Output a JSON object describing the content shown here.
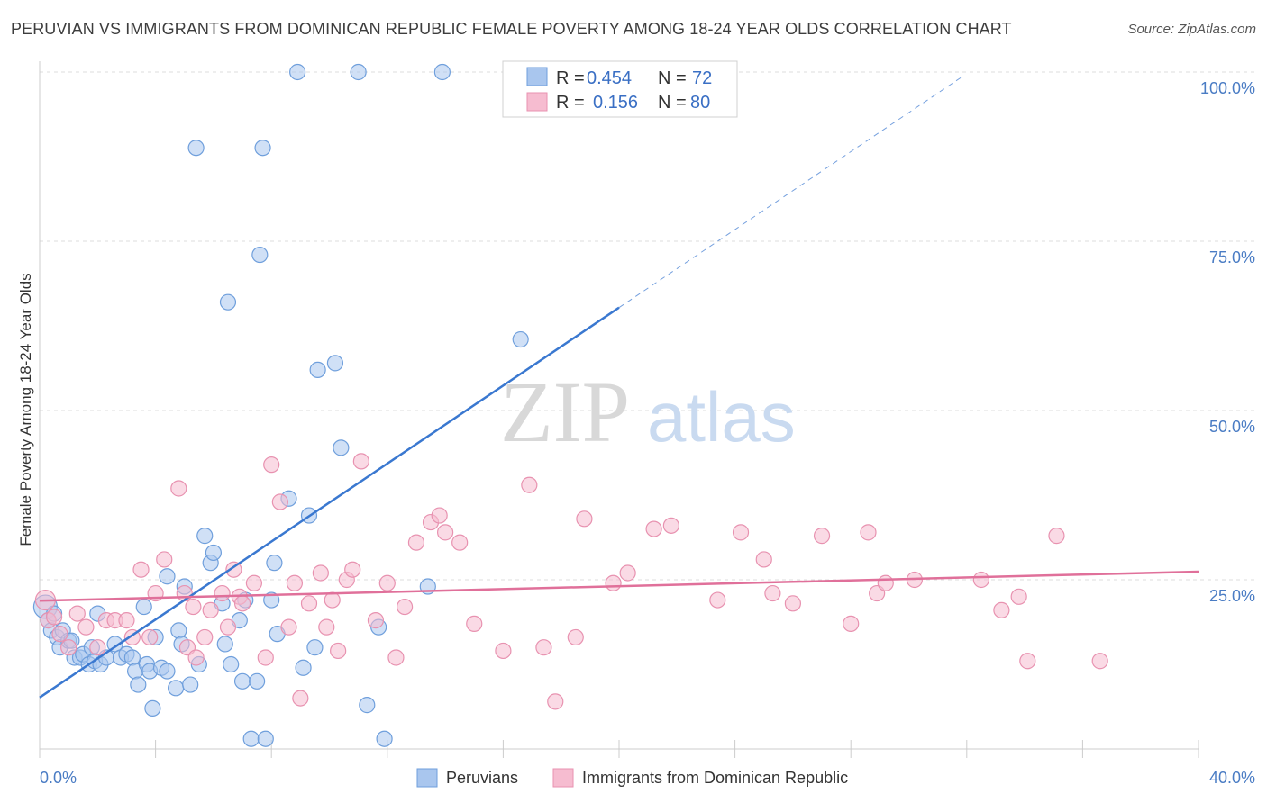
{
  "header": {
    "title": "PERUVIAN VS IMMIGRANTS FROM DOMINICAN REPUBLIC FEMALE POVERTY AMONG 18-24 YEAR OLDS CORRELATION CHART",
    "source": "Source: ZipAtlas.com"
  },
  "watermark": {
    "zip": "ZIP",
    "atlas": "atlas"
  },
  "colors": {
    "blue_fill": "#a9c6ee",
    "blue_stroke": "#6f9fdc",
    "blue_line": "#3a78d0",
    "pink_fill": "#f6bcd0",
    "pink_stroke": "#e892b0",
    "pink_line": "#e0709a",
    "tick_color": "#4a7cc4",
    "grid": "#dddddd"
  },
  "chart_data": {
    "type": "scatter",
    "ylabel": "Female Poverty Among 18-24 Year Olds",
    "xlim": [
      0,
      40
    ],
    "ylim": [
      0,
      100
    ],
    "x_ticks": [
      "0.0%",
      "40.0%"
    ],
    "y_ticks": [
      {
        "value": 25,
        "label": "25.0%"
      },
      {
        "value": 50,
        "label": "50.0%"
      },
      {
        "value": 75,
        "label": "75.0%"
      },
      {
        "value": 100,
        "label": "100.0%"
      }
    ],
    "legend_stats": [
      {
        "r_label": "R =",
        "r_value": "0.454",
        "n_label": "N =",
        "n_value": "72"
      },
      {
        "r_label": "R =",
        "r_value": "0.156",
        "n_label": "N =",
        "n_value": "80"
      }
    ],
    "series": [
      {
        "name": "Peruvians",
        "trend": {
          "x0": 0,
          "y0": 7.6,
          "x1": 20,
          "y1": 65.2,
          "dash_to_x": 31.8
        },
        "points": [
          [
            0.2,
            21
          ],
          [
            0.3,
            19
          ],
          [
            0.4,
            17.5
          ],
          [
            0.5,
            20
          ],
          [
            0.6,
            16.5
          ],
          [
            0.7,
            15
          ],
          [
            0.8,
            17.5
          ],
          [
            1.0,
            16
          ],
          [
            1.2,
            13.5
          ],
          [
            1.4,
            13.5
          ],
          [
            1.5,
            14
          ],
          [
            1.7,
            12.5
          ],
          [
            1.8,
            15
          ],
          [
            1.9,
            13
          ],
          [
            2.1,
            12.5
          ],
          [
            2.3,
            13.5
          ],
          [
            2.6,
            15.5
          ],
          [
            2.8,
            13.5
          ],
          [
            3.0,
            14
          ],
          [
            3.2,
            13.5
          ],
          [
            3.3,
            11.5
          ],
          [
            3.4,
            9.5
          ],
          [
            3.7,
            12.5
          ],
          [
            3.8,
            11.5
          ],
          [
            3.9,
            6
          ],
          [
            4.0,
            16.5
          ],
          [
            4.2,
            12
          ],
          [
            4.4,
            11.5
          ],
          [
            4.4,
            25.5
          ],
          [
            4.7,
            9
          ],
          [
            4.8,
            17.5
          ],
          [
            4.9,
            15.5
          ],
          [
            5.0,
            24
          ],
          [
            5.2,
            9.5
          ],
          [
            5.5,
            12.5
          ],
          [
            5.7,
            31.5
          ],
          [
            5.9,
            27.5
          ],
          [
            6.0,
            29
          ],
          [
            6.3,
            21.5
          ],
          [
            6.4,
            15.5
          ],
          [
            6.6,
            12.5
          ],
          [
            6.9,
            19
          ],
          [
            7.0,
            10
          ],
          [
            7.1,
            22
          ],
          [
            7.3,
            1.5
          ],
          [
            7.5,
            10
          ],
          [
            7.6,
            73
          ],
          [
            7.7,
            88.8
          ],
          [
            7.8,
            1.5
          ],
          [
            8.0,
            22
          ],
          [
            8.1,
            27.5
          ],
          [
            8.2,
            17
          ],
          [
            8.6,
            37
          ],
          [
            8.9,
            100
          ],
          [
            9.1,
            12
          ],
          [
            9.3,
            34.5
          ],
          [
            9.5,
            15
          ],
          [
            9.6,
            56
          ],
          [
            10.2,
            57
          ],
          [
            10.4,
            44.5
          ],
          [
            11.0,
            100
          ],
          [
            11.3,
            6.5
          ],
          [
            11.7,
            18
          ],
          [
            11.9,
            1.5
          ],
          [
            13.4,
            24
          ],
          [
            13.9,
            100
          ],
          [
            16.6,
            60.5
          ],
          [
            5.4,
            88.8
          ],
          [
            6.5,
            66
          ],
          [
            1.1,
            16
          ],
          [
            3.6,
            21
          ],
          [
            2.0,
            20
          ]
        ]
      },
      {
        "name": "Immigrants from Dominican Republic",
        "trend": {
          "x0": 0,
          "y0": 21.9,
          "x1": 40,
          "y1": 26.2
        },
        "points": [
          [
            0.2,
            22
          ],
          [
            0.3,
            19
          ],
          [
            0.5,
            19.5
          ],
          [
            0.7,
            17
          ],
          [
            1.0,
            15
          ],
          [
            1.3,
            20
          ],
          [
            1.6,
            18
          ],
          [
            2.0,
            15
          ],
          [
            2.3,
            19
          ],
          [
            2.6,
            19
          ],
          [
            3.0,
            19
          ],
          [
            3.2,
            16.5
          ],
          [
            3.5,
            26.5
          ],
          [
            3.8,
            16.5
          ],
          [
            4.0,
            23
          ],
          [
            4.3,
            28
          ],
          [
            4.8,
            38.5
          ],
          [
            5.0,
            23
          ],
          [
            5.1,
            15
          ],
          [
            5.3,
            21
          ],
          [
            5.4,
            13.5
          ],
          [
            5.7,
            16.5
          ],
          [
            5.9,
            20.5
          ],
          [
            6.3,
            23
          ],
          [
            6.5,
            18
          ],
          [
            6.7,
            26.5
          ],
          [
            6.9,
            22.5
          ],
          [
            7.0,
            21.5
          ],
          [
            7.4,
            24.5
          ],
          [
            7.8,
            13.5
          ],
          [
            8.0,
            42
          ],
          [
            8.3,
            36.5
          ],
          [
            8.6,
            18
          ],
          [
            8.8,
            24.5
          ],
          [
            9.0,
            7.5
          ],
          [
            9.3,
            21.5
          ],
          [
            9.7,
            26
          ],
          [
            9.9,
            18
          ],
          [
            10.1,
            22
          ],
          [
            10.3,
            14.5
          ],
          [
            10.6,
            25
          ],
          [
            10.8,
            26.5
          ],
          [
            11.1,
            42.5
          ],
          [
            11.6,
            19
          ],
          [
            12.0,
            24.5
          ],
          [
            12.3,
            13.5
          ],
          [
            12.6,
            21
          ],
          [
            13.0,
            30.5
          ],
          [
            13.5,
            33.5
          ],
          [
            13.8,
            34.5
          ],
          [
            14.0,
            32
          ],
          [
            14.5,
            30.5
          ],
          [
            15.0,
            18.5
          ],
          [
            16.0,
            14.5
          ],
          [
            16.9,
            39
          ],
          [
            17.4,
            15
          ],
          [
            17.8,
            7
          ],
          [
            18.5,
            16.5
          ],
          [
            18.8,
            34
          ],
          [
            19.8,
            24.5
          ],
          [
            20.3,
            26
          ],
          [
            21.2,
            32.5
          ],
          [
            21.8,
            33
          ],
          [
            23.4,
            22
          ],
          [
            24.2,
            32
          ],
          [
            25.0,
            28
          ],
          [
            25.3,
            23
          ],
          [
            26.0,
            21.5
          ],
          [
            27.0,
            31.5
          ],
          [
            28.0,
            18.5
          ],
          [
            28.6,
            32
          ],
          [
            28.9,
            23
          ],
          [
            29.2,
            24.5
          ],
          [
            30.2,
            25
          ],
          [
            33.2,
            20.5
          ],
          [
            33.8,
            22.5
          ],
          [
            34.1,
            13
          ],
          [
            35.1,
            31.5
          ],
          [
            36.6,
            13
          ],
          [
            32.5,
            25
          ]
        ]
      }
    ]
  },
  "bottom_legend": {
    "items": [
      {
        "label": "Peruvians"
      },
      {
        "label": "Immigrants from Dominican Republic"
      }
    ]
  }
}
